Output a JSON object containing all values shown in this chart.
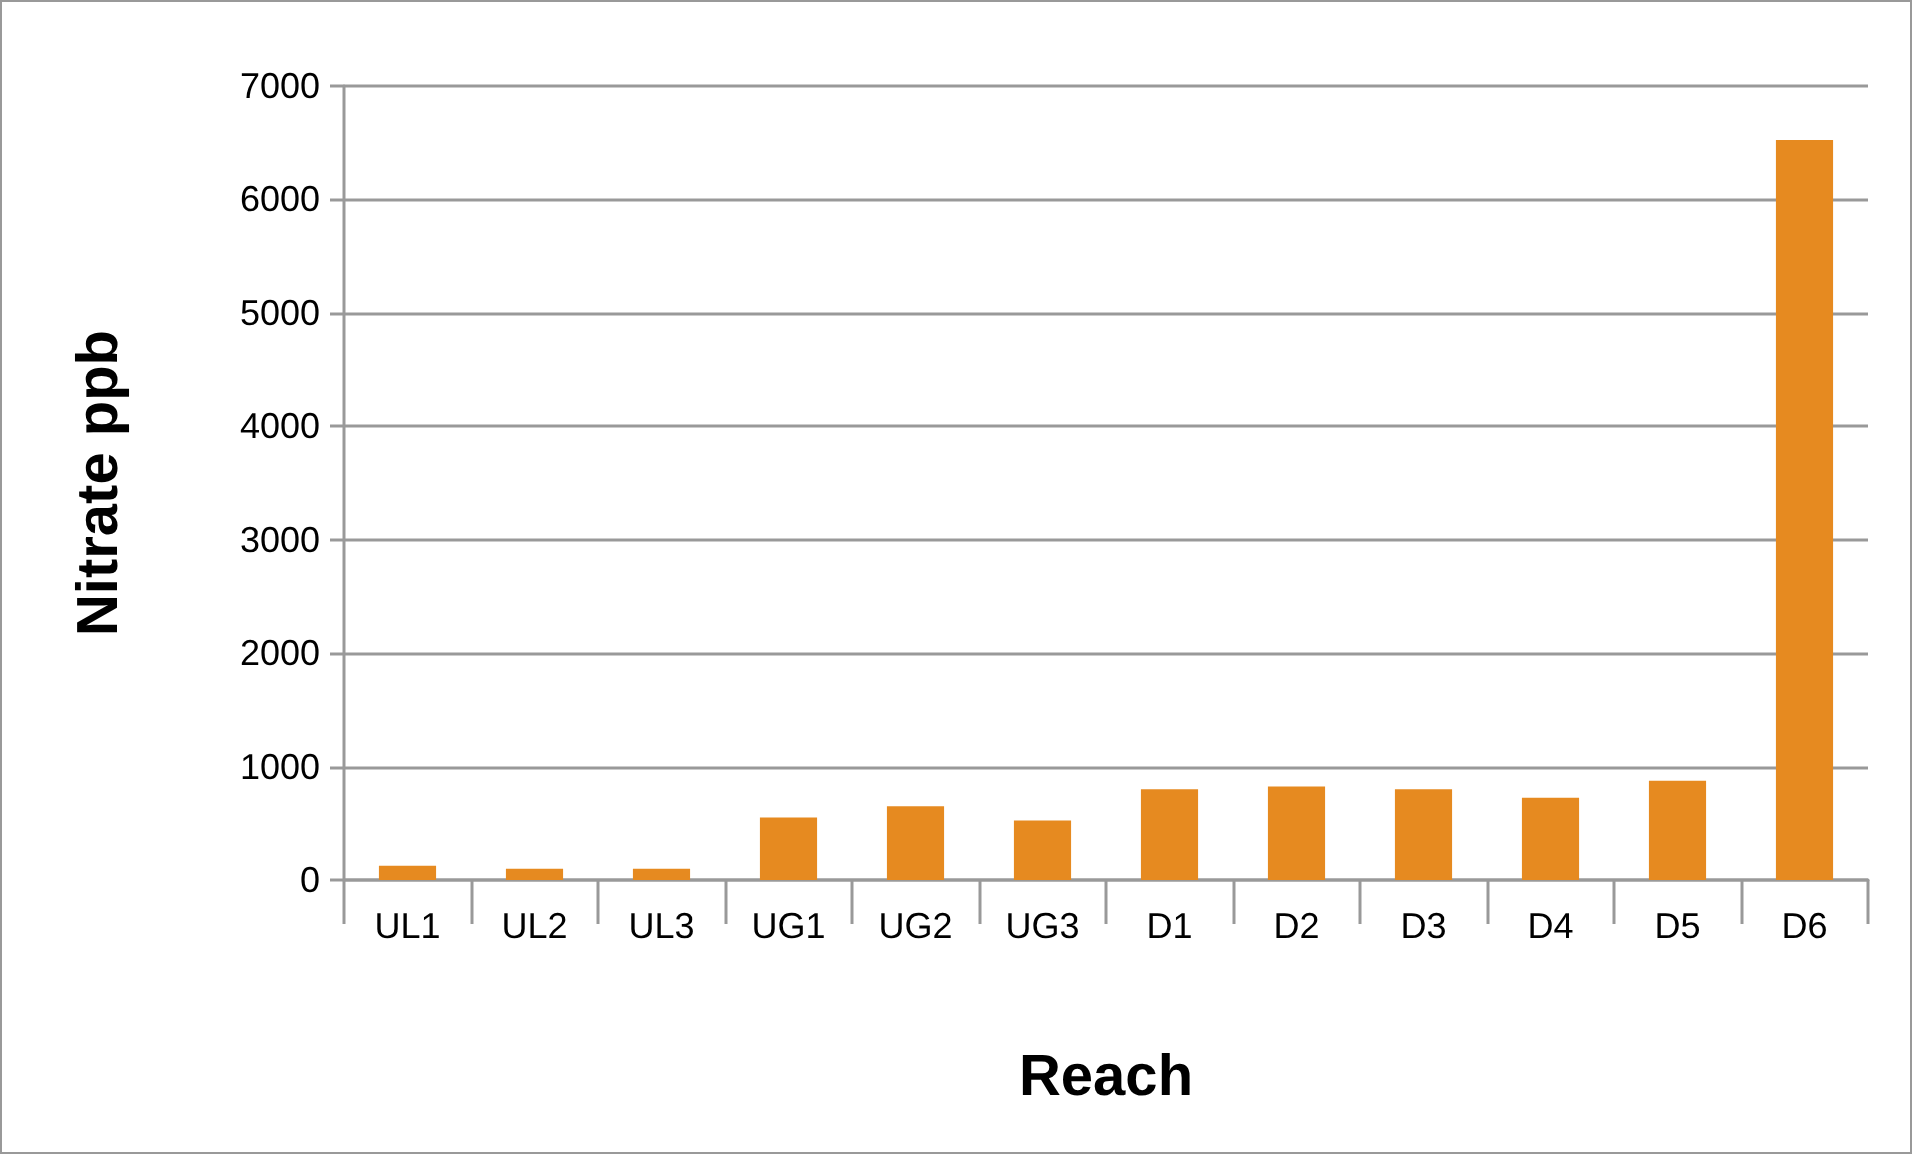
{
  "chart_data": {
    "type": "bar",
    "xlabel": "Reach",
    "ylabel": "Nitrate ppb",
    "categories": [
      "UL1",
      "UL2",
      "UL3",
      "UG1",
      "UG2",
      "UG3",
      "D1",
      "D2",
      "D3",
      "D4",
      "D5",
      "D6"
    ],
    "values": [
      125,
      100,
      100,
      550,
      650,
      525,
      800,
      825,
      800,
      725,
      875,
      6525
    ],
    "color": "#e68a20",
    "ylim": [
      0,
      7000
    ],
    "yticks": [
      0,
      1000,
      2000,
      3000,
      4000,
      5000,
      6000,
      7000
    ],
    "grid": "y"
  }
}
